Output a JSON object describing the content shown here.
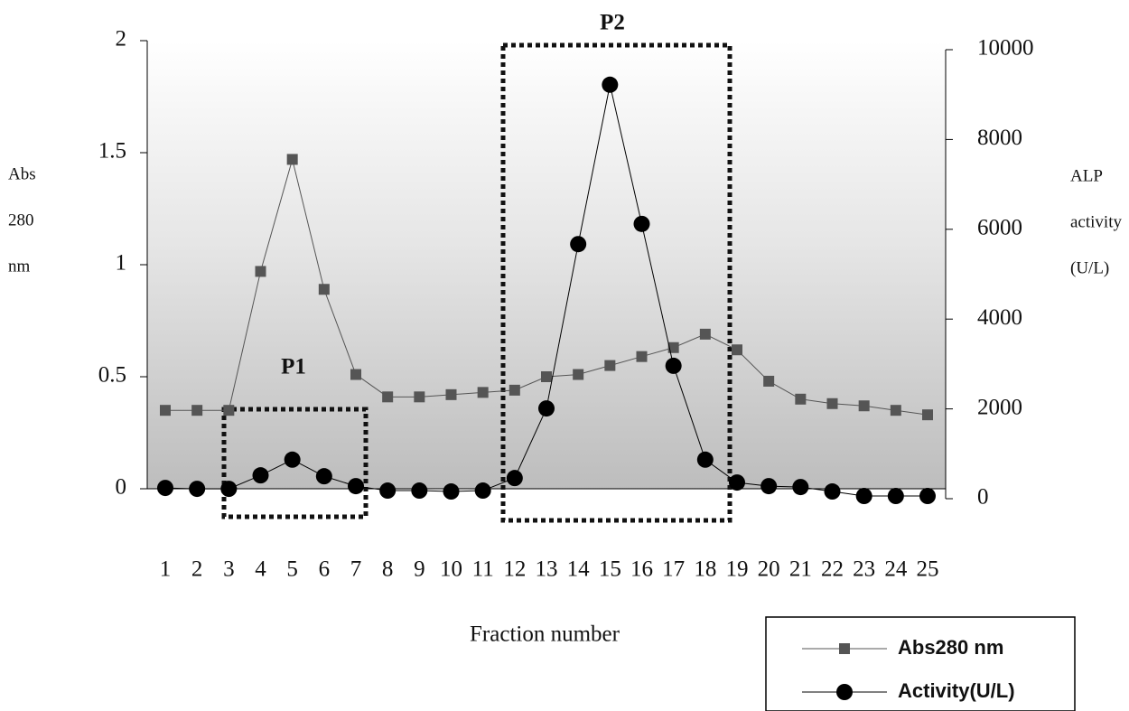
{
  "chart_data": {
    "type": "line",
    "annotations": [
      "P1",
      "P2"
    ],
    "x_label": "Fraction number",
    "y_label_lines": [
      "Abs",
      "280",
      "nm"
    ],
    "y2_label_lines": [
      "ALP",
      "activity",
      "(U/L)"
    ],
    "categories": [
      "1",
      "2",
      "3",
      "4",
      "5",
      "6",
      "7",
      "8",
      "9",
      "10",
      "11",
      "12",
      "13",
      "14",
      "15",
      "16",
      "17",
      "18",
      "19",
      "20",
      "21",
      "22",
      "23",
      "24",
      "25"
    ],
    "series": [
      {
        "name": "Abs280 nm",
        "color": "#555555",
        "marker": "square",
        "values": [
          0.35,
          0.35,
          0.35,
          0.97,
          1.47,
          0.89,
          0.51,
          0.41,
          0.41,
          0.42,
          0.43,
          0.44,
          0.5,
          0.51,
          0.55,
          0.59,
          0.63,
          0.69,
          0.62,
          0.48,
          0.4,
          0.38,
          0.37,
          0.35,
          0.33
        ]
      },
      {
        "name": "Activity(U/L)",
        "color": "#000000",
        "marker": "circle",
        "axis": "y2",
        "values": [
          240,
          220,
          220,
          520,
          870,
          500,
          280,
          180,
          180,
          160,
          180,
          460,
          2010,
          5670,
          9220,
          6120,
          2960,
          870,
          360,
          280,
          260,
          160,
          60,
          60,
          60
        ]
      }
    ],
    "ylim": [
      0,
      2
    ],
    "yticks": [
      0,
      0.5,
      1,
      1.5,
      2
    ],
    "y2lim": [
      0,
      10000
    ],
    "y2ticks": [
      0,
      2000,
      4000,
      6000,
      8000,
      10000
    ]
  }
}
